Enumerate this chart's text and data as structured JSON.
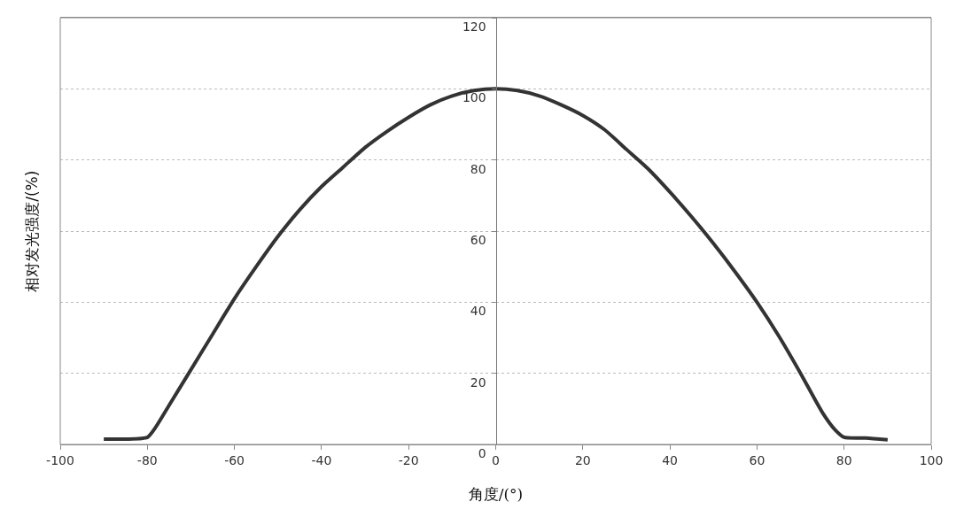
{
  "chart_data": {
    "type": "line",
    "xlabel": "角度/(°)",
    "ylabel": "相对发光强度/(%)",
    "xlim": [
      -100,
      100
    ],
    "xticks": [
      -100,
      -80,
      -60,
      -40,
      -20,
      0,
      20,
      40,
      60,
      80,
      100
    ],
    "ylim": [
      0,
      120
    ],
    "yticks": [
      0,
      20,
      40,
      60,
      80,
      100,
      120
    ],
    "grid": "y",
    "legend": false,
    "marker": "none",
    "line_style": "solid",
    "series": [
      {
        "color": "#333333",
        "x": [
          -90,
          -85,
          -80,
          -78,
          -75,
          -70,
          -65,
          -60,
          -55,
          -50,
          -45,
          -40,
          -35,
          -30,
          -25,
          -20,
          -15,
          -10,
          -5,
          0,
          5,
          10,
          15,
          20,
          25,
          30,
          35,
          40,
          45,
          50,
          55,
          60,
          65,
          70,
          75,
          78,
          80,
          85,
          90
        ],
        "values": [
          1.5,
          1.5,
          2,
          5,
          11,
          21,
          31,
          41,
          50,
          58.5,
          66,
          72.5,
          78,
          83.5,
          88,
          92,
          95.5,
          98,
          99.5,
          100,
          99.5,
          98,
          95.5,
          92.5,
          88.5,
          83,
          77.5,
          71,
          64,
          56.5,
          48.5,
          40,
          30.5,
          20,
          9,
          4,
          2,
          1.8,
          1.3
        ]
      }
    ]
  }
}
